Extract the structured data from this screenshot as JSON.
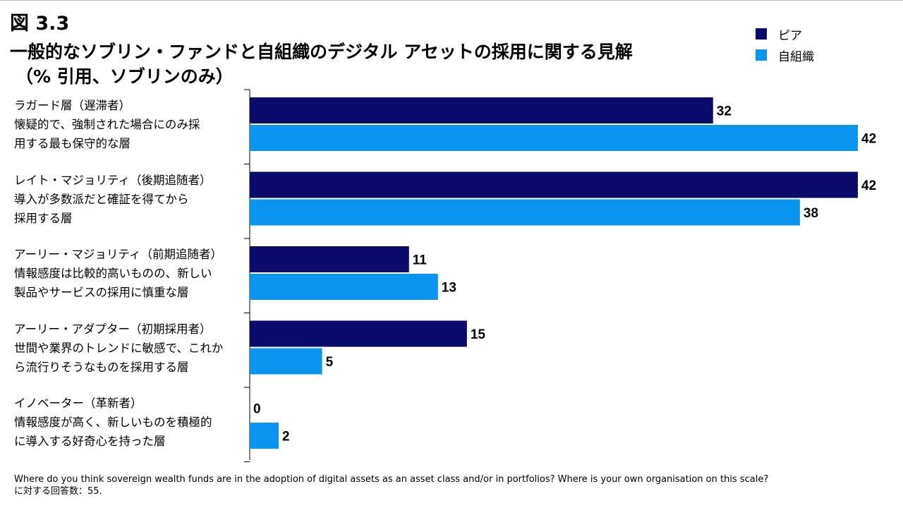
{
  "figure": {
    "number": "図 3.3",
    "title": "一般的なソブリン・ファンドと自組織のデジタル アセットの採用に関する見解",
    "subtitle": "（% 引用、ソブリンのみ）"
  },
  "legend": [
    {
      "label": "ピア",
      "color": "#0a0a6b"
    },
    {
      "label": "自組織",
      "color": "#0a96f0"
    }
  ],
  "chart_data": {
    "type": "bar",
    "orientation": "horizontal",
    "categories": [
      [
        "ラガード層（遅滞者）",
        "懐疑的で、強制された場合にのみ採",
        "用する最も保守的な層"
      ],
      [
        "レイト・マジョリティ（後期追随者）",
        "導入が多数派だと確証を得てから",
        "採用する層"
      ],
      [
        "アーリー・マジョリティ（前期追随者）",
        "情報感度は比較的高いものの、新しい",
        "製品やサービスの採用に慎重な層"
      ],
      [
        "アーリー・アダプター（初期採用者）",
        "世間や業界のトレンドに敏感で、これか",
        "ら流行りそうなものを採用する層"
      ],
      [
        "イノベーター（革新者）",
        "情報感度が高く、新しいものを積極的",
        "に導入する好奇心を持った層"
      ]
    ],
    "series": [
      {
        "name": "ピア",
        "color": "#0a0a6b",
        "values": [
          32,
          42,
          11,
          15,
          0
        ]
      },
      {
        "name": "自組織",
        "color": "#0a96f0",
        "values": [
          42,
          38,
          13,
          5,
          2
        ]
      }
    ],
    "xlim": [
      0,
      42
    ],
    "grid": false,
    "legend_position": "top-right",
    "data_labels": true
  },
  "footer": {
    "question": "Where do you think sovereign wealth funds are in the adoption of digital assets as an asset class and/or in portfolios? Where is your own organisation on this scale?",
    "respondents": "に対する回答数：55."
  }
}
